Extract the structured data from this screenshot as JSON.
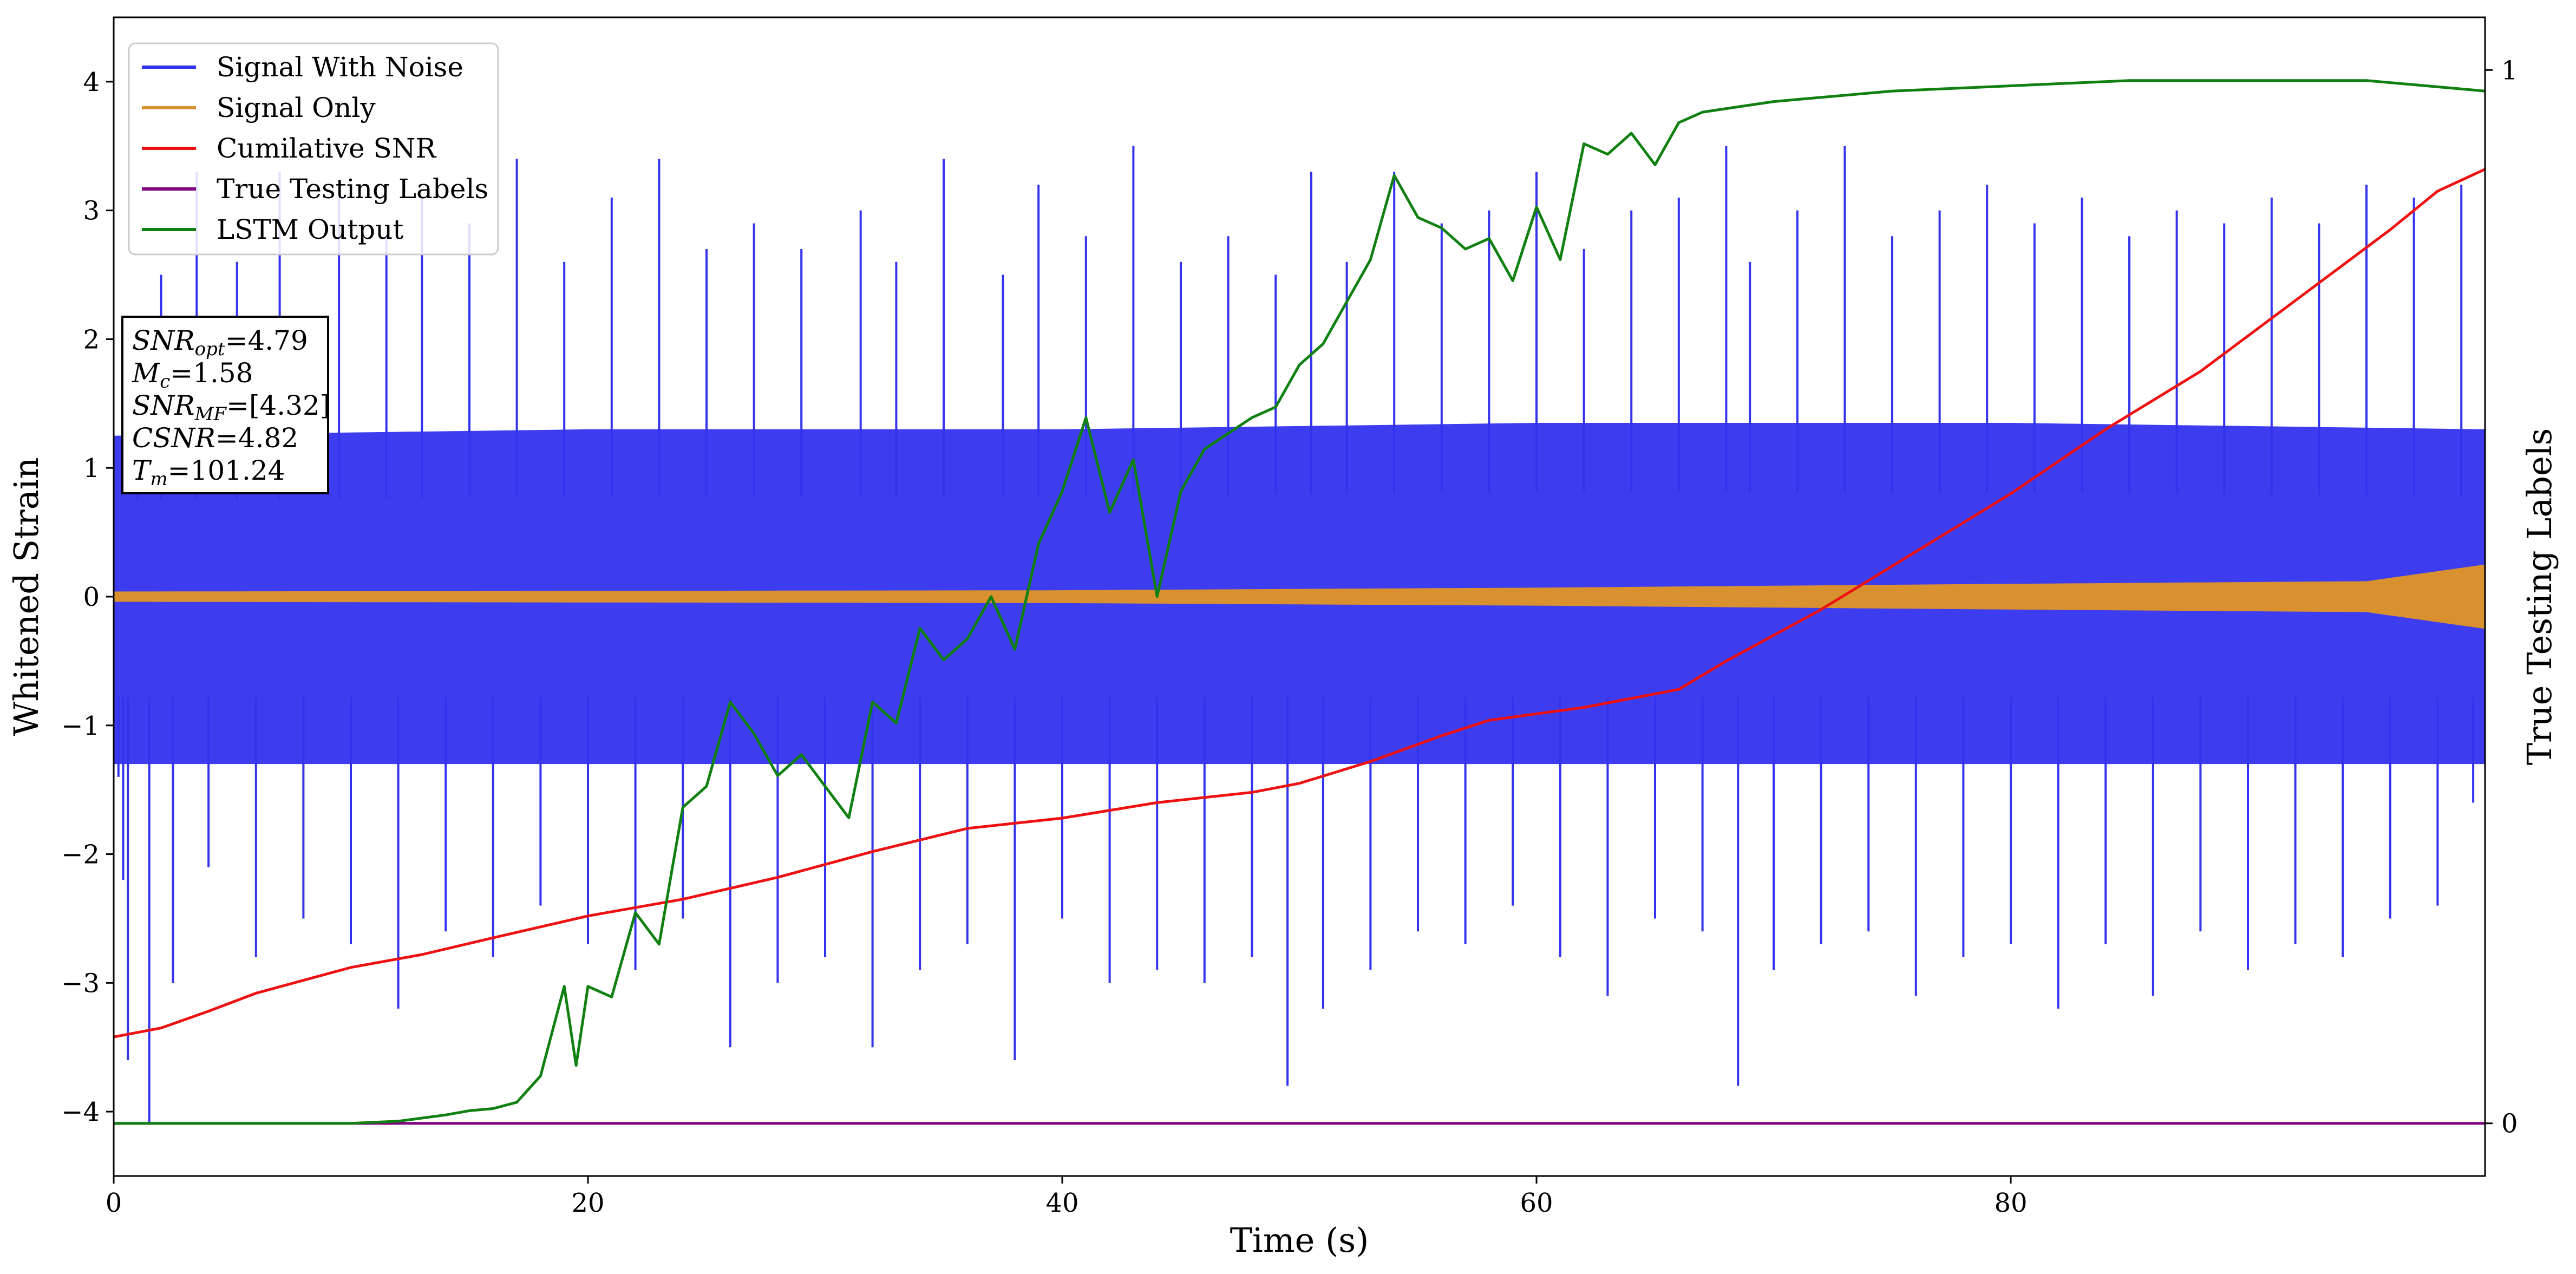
{
  "chart_data": {
    "type": "line",
    "title": "",
    "xlabel": "Time (s)",
    "ylabel": "Whitened Strain",
    "y2label": "True Testing Labels",
    "xlim": [
      0,
      100
    ],
    "ylim": [
      -4.5,
      4.5
    ],
    "y2lim": [
      -0.05,
      1.05
    ],
    "xticks": [
      0,
      20,
      40,
      60,
      80
    ],
    "yticks": [
      -4,
      -3,
      -2,
      -1,
      0,
      1,
      2,
      3,
      4
    ],
    "y2ticks": [
      0,
      1
    ],
    "grid": false,
    "legend_position": "top-left",
    "colors": {
      "noise": "#3333ee",
      "signal": "#d9902f",
      "csnr": "#ee1111",
      "labels": "#800080",
      "lstm": "#108010"
    },
    "series": [
      {
        "name": "Signal With Noise",
        "axis": "left",
        "style": "dense-noise",
        "envelope_upper": [
          [
            0,
            1.25
          ],
          [
            20,
            1.3
          ],
          [
            40,
            1.3
          ],
          [
            60,
            1.35
          ],
          [
            80,
            1.35
          ],
          [
            100,
            1.3
          ]
        ],
        "envelope_lower": [
          [
            0,
            -1.3
          ],
          [
            20,
            -1.3
          ],
          [
            40,
            -1.3
          ],
          [
            60,
            -1.3
          ],
          [
            80,
            -1.3
          ],
          [
            100,
            -1.3
          ]
        ],
        "spikes": [
          [
            0.2,
            -1.4
          ],
          [
            0.4,
            -2.2
          ],
          [
            0.6,
            -3.6
          ],
          [
            1.0,
            2.0
          ],
          [
            1.5,
            -4.1
          ],
          [
            2.0,
            2.5
          ],
          [
            2.5,
            -3.0
          ],
          [
            3.5,
            3.3
          ],
          [
            4.0,
            -2.1
          ],
          [
            5.2,
            2.6
          ],
          [
            6.0,
            -2.8
          ],
          [
            7.0,
            3.3
          ],
          [
            8.0,
            -2.5
          ],
          [
            9.5,
            3.1
          ],
          [
            10.0,
            -2.7
          ],
          [
            11.5,
            2.8
          ],
          [
            12.0,
            -3.2
          ],
          [
            13.0,
            3.1
          ],
          [
            14.0,
            -2.6
          ],
          [
            15.0,
            2.9
          ],
          [
            16.0,
            -2.8
          ],
          [
            17.0,
            3.4
          ],
          [
            18.0,
            -2.4
          ],
          [
            19.0,
            2.6
          ],
          [
            20.0,
            -2.7
          ],
          [
            21.0,
            3.1
          ],
          [
            22.0,
            -2.9
          ],
          [
            23.0,
            3.4
          ],
          [
            24.0,
            -2.5
          ],
          [
            25.0,
            2.7
          ],
          [
            26.0,
            -3.5
          ],
          [
            27.0,
            2.9
          ],
          [
            28.0,
            -3.0
          ],
          [
            29.0,
            2.7
          ],
          [
            30.0,
            -2.8
          ],
          [
            31.5,
            3.0
          ],
          [
            32.0,
            -3.5
          ],
          [
            33.0,
            2.6
          ],
          [
            34.0,
            -2.9
          ],
          [
            35.0,
            3.4
          ],
          [
            36.0,
            -2.7
          ],
          [
            37.5,
            2.5
          ],
          [
            38.0,
            -3.6
          ],
          [
            39.0,
            3.2
          ],
          [
            40.0,
            -2.5
          ],
          [
            41.0,
            2.8
          ],
          [
            42.0,
            -3.0
          ],
          [
            43.0,
            3.5
          ],
          [
            44.0,
            -2.9
          ],
          [
            45.0,
            2.6
          ],
          [
            46.0,
            -3.0
          ],
          [
            47.0,
            2.8
          ],
          [
            48.0,
            -2.8
          ],
          [
            49.0,
            2.5
          ],
          [
            49.5,
            -3.8
          ],
          [
            50.5,
            3.3
          ],
          [
            51.0,
            -3.2
          ],
          [
            52.0,
            2.6
          ],
          [
            53.0,
            -2.9
          ],
          [
            54.0,
            3.3
          ],
          [
            55.0,
            -2.6
          ],
          [
            56.0,
            2.9
          ],
          [
            57.0,
            -2.7
          ],
          [
            58.0,
            3.0
          ],
          [
            59.0,
            -2.4
          ],
          [
            60.0,
            3.3
          ],
          [
            61.0,
            -2.8
          ],
          [
            62.0,
            2.7
          ],
          [
            63.0,
            -3.1
          ],
          [
            64.0,
            3.0
          ],
          [
            65.0,
            -2.5
          ],
          [
            66.0,
            3.1
          ],
          [
            67.0,
            -2.6
          ],
          [
            68.0,
            3.5
          ],
          [
            68.5,
            -3.8
          ],
          [
            69.0,
            2.6
          ],
          [
            70.0,
            -2.9
          ],
          [
            71.0,
            3.0
          ],
          [
            72.0,
            -2.7
          ],
          [
            73.0,
            3.5
          ],
          [
            74.0,
            -2.6
          ],
          [
            75.0,
            2.8
          ],
          [
            76.0,
            -3.1
          ],
          [
            77.0,
            3.0
          ],
          [
            78.0,
            -2.8
          ],
          [
            79.0,
            3.2
          ],
          [
            80.0,
            -2.7
          ],
          [
            81.0,
            2.9
          ],
          [
            82.0,
            -3.2
          ],
          [
            83.0,
            3.1
          ],
          [
            84.0,
            -2.7
          ],
          [
            85.0,
            2.8
          ],
          [
            86.0,
            -3.1
          ],
          [
            87.0,
            3.0
          ],
          [
            88.0,
            -2.6
          ],
          [
            89.0,
            2.9
          ],
          [
            90.0,
            -2.9
          ],
          [
            91.0,
            3.1
          ],
          [
            92.0,
            -2.7
          ],
          [
            93.0,
            2.9
          ],
          [
            94.0,
            -2.8
          ],
          [
            95.0,
            3.2
          ],
          [
            96.0,
            -2.5
          ],
          [
            97.0,
            3.1
          ],
          [
            98.0,
            -2.4
          ],
          [
            99.0,
            3.2
          ],
          [
            99.5,
            -1.6
          ]
        ]
      },
      {
        "name": "Signal Only",
        "axis": "left",
        "style": "band",
        "amplitude": [
          [
            0,
            0.04
          ],
          [
            40,
            0.05
          ],
          [
            60,
            0.07
          ],
          [
            80,
            0.1
          ],
          [
            95,
            0.12
          ],
          [
            100,
            0.25
          ]
        ]
      },
      {
        "name": "Cumilative SNR",
        "axis": "left",
        "points": [
          [
            0,
            -3.42
          ],
          [
            2,
            -3.35
          ],
          [
            4,
            -3.22
          ],
          [
            6,
            -3.08
          ],
          [
            8,
            -2.98
          ],
          [
            10,
            -2.88
          ],
          [
            13,
            -2.78
          ],
          [
            16,
            -2.65
          ],
          [
            20,
            -2.48
          ],
          [
            24,
            -2.35
          ],
          [
            28,
            -2.18
          ],
          [
            32,
            -1.98
          ],
          [
            36,
            -1.8
          ],
          [
            40,
            -1.72
          ],
          [
            44,
            -1.6
          ],
          [
            48,
            -1.52
          ],
          [
            50,
            -1.45
          ],
          [
            53,
            -1.28
          ],
          [
            56,
            -1.08
          ],
          [
            58,
            -0.96
          ],
          [
            62,
            -0.86
          ],
          [
            66,
            -0.72
          ],
          [
            68,
            -0.5
          ],
          [
            72,
            -0.1
          ],
          [
            76,
            0.35
          ],
          [
            80,
            0.8
          ],
          [
            84,
            1.3
          ],
          [
            88,
            1.75
          ],
          [
            92,
            2.3
          ],
          [
            96,
            2.85
          ],
          [
            98,
            3.15
          ],
          [
            100,
            3.32
          ]
        ]
      },
      {
        "name": "True Testing Labels",
        "axis": "right",
        "points": [
          [
            0,
            0
          ],
          [
            100,
            0
          ]
        ]
      },
      {
        "name": "LSTM Output",
        "axis": "right",
        "points": [
          [
            0,
            0
          ],
          [
            10,
            0
          ],
          [
            12,
            0.002
          ],
          [
            14,
            0.008
          ],
          [
            15,
            0.012
          ],
          [
            16,
            0.014
          ],
          [
            17,
            0.02
          ],
          [
            18,
            0.045
          ],
          [
            19,
            0.13
          ],
          [
            19.5,
            0.055
          ],
          [
            20,
            0.13
          ],
          [
            21,
            0.12
          ],
          [
            22,
            0.2
          ],
          [
            23,
            0.17
          ],
          [
            24,
            0.3
          ],
          [
            25,
            0.32
          ],
          [
            26,
            0.4
          ],
          [
            27,
            0.37
          ],
          [
            28,
            0.33
          ],
          [
            29,
            0.35
          ],
          [
            30,
            0.32
          ],
          [
            31,
            0.29
          ],
          [
            32,
            0.4
          ],
          [
            33,
            0.38
          ],
          [
            34,
            0.47
          ],
          [
            35,
            0.44
          ],
          [
            36,
            0.46
          ],
          [
            37,
            0.5
          ],
          [
            38,
            0.45
          ],
          [
            39,
            0.55
          ],
          [
            40,
            0.6
          ],
          [
            41,
            0.67
          ],
          [
            42,
            0.58
          ],
          [
            43,
            0.63
          ],
          [
            44,
            0.5
          ],
          [
            45,
            0.6
          ],
          [
            46,
            0.64
          ],
          [
            48,
            0.67
          ],
          [
            49,
            0.68
          ],
          [
            50,
            0.72
          ],
          [
            51,
            0.74
          ],
          [
            52,
            0.78
          ],
          [
            53,
            0.82
          ],
          [
            54,
            0.9
          ],
          [
            55,
            0.86
          ],
          [
            56,
            0.85
          ],
          [
            57,
            0.83
          ],
          [
            58,
            0.84
          ],
          [
            59,
            0.8
          ],
          [
            60,
            0.87
          ],
          [
            61,
            0.82
          ],
          [
            62,
            0.93
          ],
          [
            63,
            0.92
          ],
          [
            64,
            0.94
          ],
          [
            65,
            0.91
          ],
          [
            66,
            0.95
          ],
          [
            67,
            0.96
          ],
          [
            70,
            0.97
          ],
          [
            75,
            0.98
          ],
          [
            80,
            0.985
          ],
          [
            85,
            0.99
          ],
          [
            90,
            0.99
          ],
          [
            95,
            0.99
          ],
          [
            100,
            0.98
          ]
        ]
      }
    ],
    "annotations": {
      "snr_opt": {
        "label": "SNR",
        "sub": "opt",
        "value": "=4.79"
      },
      "mc": {
        "label": "M",
        "sub": "c",
        "value": "=1.58"
      },
      "snr_mf": {
        "label": "SNR",
        "sub": "MF",
        "value": "=[4.32]"
      },
      "csnr": {
        "label": "CSNR",
        "value": "=4.82"
      },
      "tm": {
        "label": "T",
        "sub": "m",
        "value": "=101.24"
      }
    }
  }
}
